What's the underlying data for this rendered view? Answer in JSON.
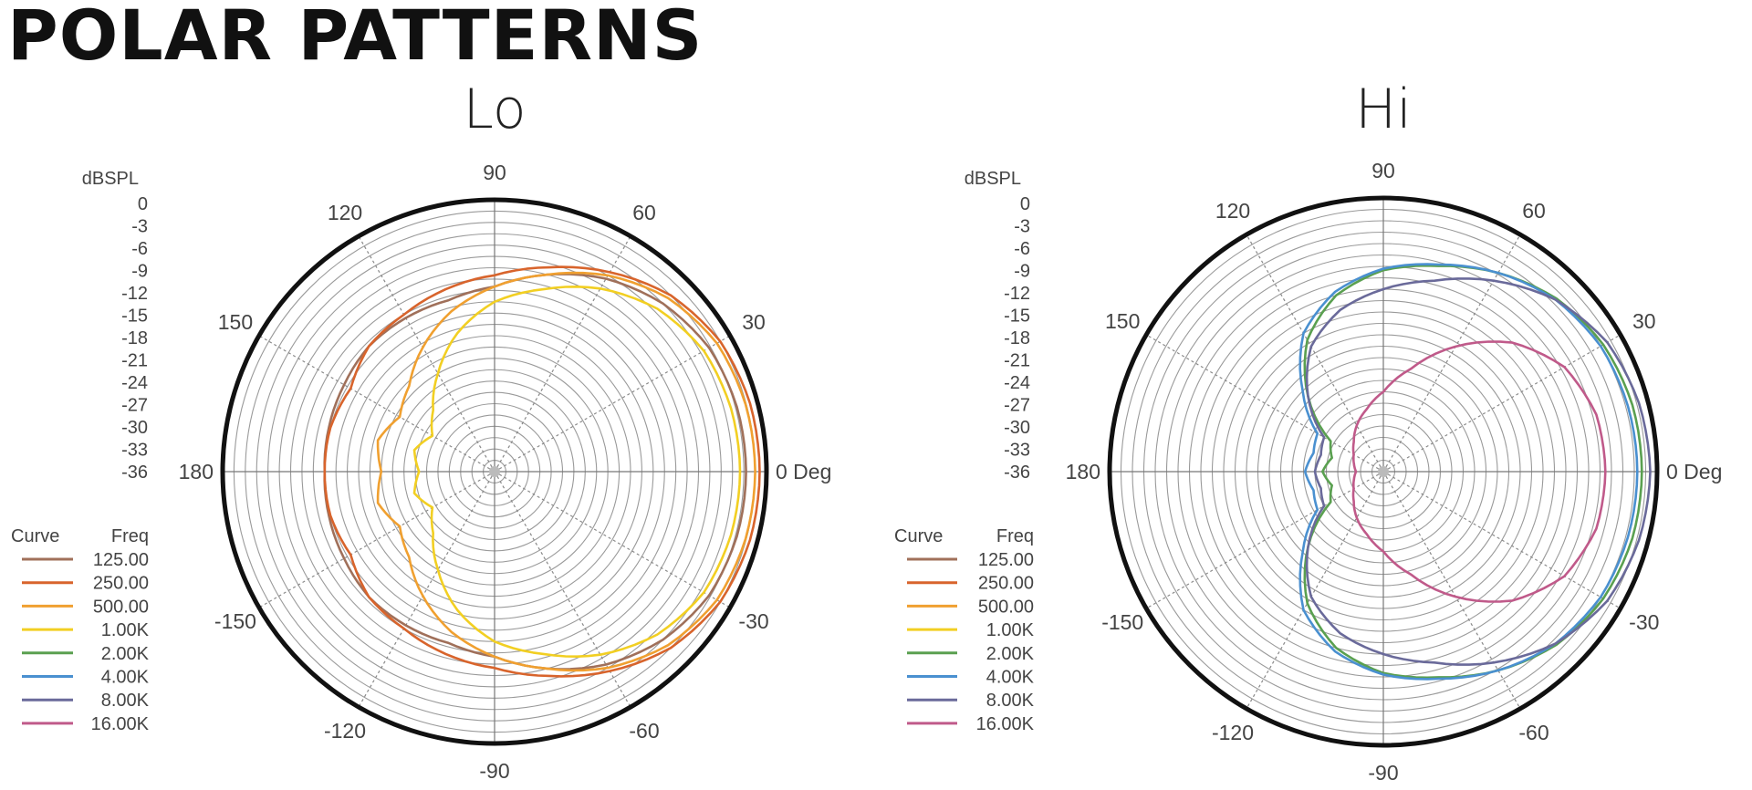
{
  "title": "POLAR PATTERNS",
  "chart_data": [
    {
      "type": "polar-line",
      "title": "Lo",
      "radial_label": "dBSPL",
      "radial_ticks": [
        "0",
        "-3",
        "-6",
        "-9",
        "-12",
        "-15",
        "-18",
        "-21",
        "-24",
        "-27",
        "-30",
        "-33",
        "-36"
      ],
      "rlim": [
        -36,
        0
      ],
      "angle_ticks": [
        "0 Deg",
        "30",
        "60",
        "90",
        "120",
        "150",
        "180",
        "-150",
        "-120",
        "-90",
        "-60",
        "-30"
      ],
      "legend_headers": [
        "Curve",
        "Freq"
      ],
      "legend": [
        {
          "freq": "125.00",
          "color": "#a0705a"
        },
        {
          "freq": "250.00",
          "color": "#d8642c"
        },
        {
          "freq": "500.00",
          "color": "#f0a030"
        },
        {
          "freq": "1.00K",
          "color": "#f2cf22"
        },
        {
          "freq": "2.00K",
          "color": "#5aa050"
        },
        {
          "freq": "4.00K",
          "color": "#4a90d0"
        },
        {
          "freq": "8.00K",
          "color": "#6a6a9a"
        },
        {
          "freq": "16.00K",
          "color": "#c05a8a"
        }
      ],
      "angles_deg": [
        0,
        15,
        30,
        45,
        60,
        75,
        90,
        105,
        120,
        135,
        150,
        165,
        180
      ],
      "symmetric": true,
      "series": [
        {
          "freq": "125.00",
          "color": "#a0705a",
          "db": [
            -2.7,
            -2.8,
            -3.2,
            -4.5,
            -6.5,
            -9,
            -11.5,
            -12.5,
            -12.5,
            -12.5,
            -13,
            -13.3,
            -13.5
          ]
        },
        {
          "freq": "250.00",
          "color": "#d8642c",
          "db": [
            -0.9,
            -1,
            -1.5,
            -3,
            -5.5,
            -8,
            -10,
            -11,
            -12,
            -12.5,
            -14,
            -13.5,
            -13.5
          ]
        },
        {
          "freq": "500.00",
          "color": "#f0a030",
          "db": [
            -1.5,
            -1.6,
            -2,
            -3.5,
            -6,
            -9,
            -11.5,
            -14,
            -17,
            -20,
            -21.5,
            -20,
            -21
          ]
        },
        {
          "freq": "1.00K",
          "color": "#f2cf22",
          "db": [
            -3.5,
            -3.6,
            -4,
            -5.5,
            -8,
            -11,
            -13.5,
            -17,
            -21,
            -24.5,
            -26.5,
            -25,
            -26
          ]
        }
      ]
    },
    {
      "type": "polar-line",
      "title": "Hi",
      "radial_label": "dBSPL",
      "radial_ticks": [
        "0",
        "-3",
        "-6",
        "-9",
        "-12",
        "-15",
        "-18",
        "-21",
        "-24",
        "-27",
        "-30",
        "-33",
        "-36"
      ],
      "rlim": [
        -36,
        0
      ],
      "angle_ticks": [
        "0 Deg",
        "30",
        "60",
        "90",
        "120",
        "150",
        "180",
        "-150",
        "-120",
        "-90",
        "-60",
        "-30"
      ],
      "legend_headers": [
        "Curve",
        "Freq"
      ],
      "legend": [
        {
          "freq": "125.00",
          "color": "#a0705a"
        },
        {
          "freq": "250.00",
          "color": "#d8642c"
        },
        {
          "freq": "500.00",
          "color": "#f0a030"
        },
        {
          "freq": "1.00K",
          "color": "#f2cf22"
        },
        {
          "freq": "2.00K",
          "color": "#5aa050"
        },
        {
          "freq": "4.00K",
          "color": "#4a90d0"
        },
        {
          "freq": "8.00K",
          "color": "#6a6a9a"
        },
        {
          "freq": "16.00K",
          "color": "#c05a8a"
        }
      ],
      "angles_deg": [
        0,
        15,
        30,
        45,
        60,
        75,
        90,
        105,
        120,
        135,
        150,
        165,
        180
      ],
      "symmetric": true,
      "series": [
        {
          "freq": "2.00K",
          "color": "#5aa050",
          "db": [
            -2,
            -2.1,
            -2.6,
            -3.8,
            -5.8,
            -8,
            -9.5,
            -12,
            -16,
            -22,
            -28,
            -29,
            -28
          ]
        },
        {
          "freq": "4.00K",
          "color": "#4a90d0",
          "db": [
            -2.6,
            -2.7,
            -3,
            -4,
            -5.8,
            -7.8,
            -9.3,
            -11.5,
            -15,
            -21,
            -26,
            -26.5,
            -25.7
          ]
        },
        {
          "freq": "8.00K",
          "color": "#6a6a9a",
          "db": [
            -0.9,
            -1.2,
            -2,
            -4,
            -7,
            -10,
            -12,
            -14,
            -17,
            -22,
            -27,
            -27.5,
            -27
          ]
        },
        {
          "freq": "16.00K",
          "color": "#c05a8a",
          "db": [
            -6.8,
            -7,
            -8.5,
            -12,
            -17,
            -22,
            -25.5,
            -27.5,
            -29,
            -30.5,
            -31.5,
            -32,
            -32.4
          ]
        }
      ]
    }
  ]
}
